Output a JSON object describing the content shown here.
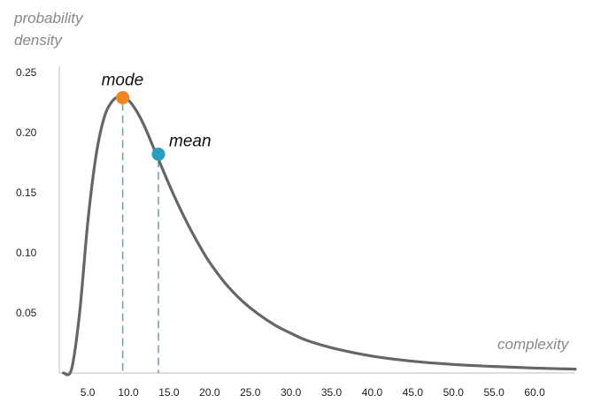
{
  "chart_data": {
    "type": "line",
    "title": "",
    "ylabel_lines": [
      "probability",
      "density"
    ],
    "xlabel": "complexity",
    "x_ticks": [
      {
        "value": 5,
        "label": "5.0"
      },
      {
        "value": 10,
        "label": "10.0"
      },
      {
        "value": 15,
        "label": "15.0"
      },
      {
        "value": 20,
        "label": "20.0"
      },
      {
        "value": 25,
        "label": "25.0"
      },
      {
        "value": 30,
        "label": "30.0"
      },
      {
        "value": 35,
        "label": "35.0"
      },
      {
        "value": 40,
        "label": "40.0"
      },
      {
        "value": 45,
        "label": "45.0"
      },
      {
        "value": 50,
        "label": "50.0"
      },
      {
        "value": 55,
        "label": "55.0"
      },
      {
        "value": 60,
        "label": "60.0"
      }
    ],
    "y_ticks": [
      {
        "value": 0.05,
        "label": "0.05"
      },
      {
        "value": 0.1,
        "label": "0.10"
      },
      {
        "value": 0.15,
        "label": "0.15"
      },
      {
        "value": 0.2,
        "label": "0.20"
      },
      {
        "value": 0.25,
        "label": "0.25"
      }
    ],
    "xlim": [
      1.5,
      65
    ],
    "ylim": [
      0,
      0.25
    ],
    "grid": false,
    "legend": "none",
    "curve_color": "#666666",
    "x": [
      2,
      3,
      4,
      5,
      6,
      7,
      8,
      9,
      10,
      11,
      12,
      13,
      14,
      15,
      16,
      17,
      18,
      19,
      20,
      22,
      24,
      26,
      28,
      30,
      32,
      35,
      38,
      41,
      45,
      50,
      55,
      60,
      65
    ],
    "y": [
      0.0,
      0.003,
      0.05,
      0.125,
      0.18,
      0.212,
      0.226,
      0.23,
      0.227,
      0.218,
      0.205,
      0.189,
      0.173,
      0.157,
      0.142,
      0.128,
      0.115,
      0.103,
      0.092,
      0.074,
      0.06,
      0.049,
      0.04,
      0.033,
      0.027,
      0.021,
      0.0165,
      0.013,
      0.0098,
      0.0071,
      0.0054,
      0.0041,
      0.0032
    ],
    "annotations": [
      {
        "label": "mode",
        "x": 9.3,
        "y": 0.229,
        "color": "#f28522"
      },
      {
        "label": "mean",
        "x": 13.7,
        "y": 0.182,
        "color": "#2a9ec1"
      }
    ]
  }
}
